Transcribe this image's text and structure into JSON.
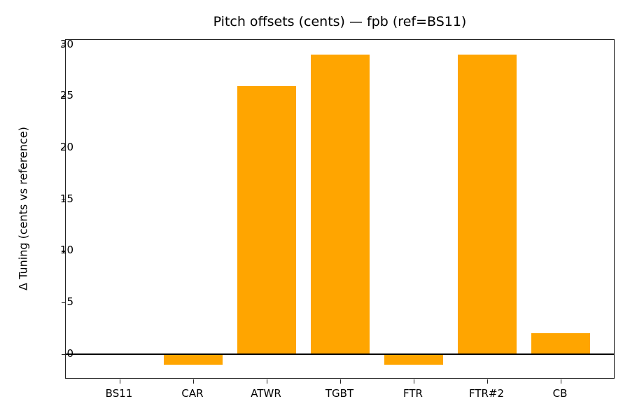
{
  "chart_data": {
    "type": "bar",
    "title": "Pitch offsets (cents) — fpb (ref=BS11)",
    "xlabel": "",
    "ylabel": "Δ Tuning (cents vs reference)",
    "categories": [
      "BS11",
      "CAR",
      "ATWR",
      "TGBT",
      "FTR",
      "FTR#2",
      "CB"
    ],
    "values": [
      0,
      -1,
      26,
      29,
      -1,
      29,
      2
    ],
    "ylim": [
      -2.45,
      30.45
    ],
    "yticks": [
      0,
      5,
      10,
      15,
      20,
      25,
      30
    ],
    "grid": false,
    "legend": null,
    "bar_color": "#FFA500",
    "reference_line": 0
  }
}
